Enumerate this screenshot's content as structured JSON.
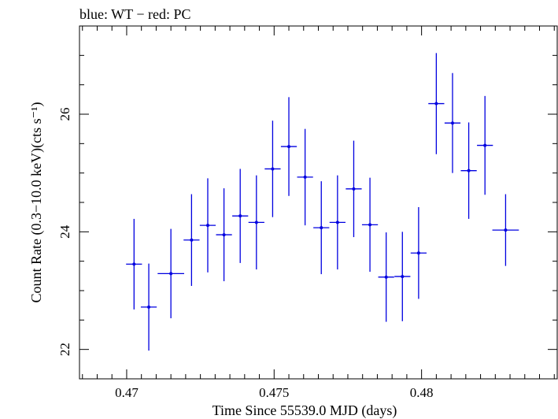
{
  "chart_data": {
    "type": "scatter",
    "title": "blue: WT − red: PC",
    "xlabel": "Time Since 55539.0 MJD (days)",
    "ylabel": "Count Rate (0.3−10.0 keV)(cts s⁻¹)",
    "xlim": [
      0.4684,
      0.4846
    ],
    "ylim": [
      21.5,
      27.5
    ],
    "x_ticks": [
      0.47,
      0.475,
      0.48
    ],
    "x_tick_labels": [
      "0.47",
      "0.475",
      "0.48"
    ],
    "y_ticks": [
      22,
      24,
      26
    ],
    "y_tick_labels": [
      "22",
      "24",
      "26"
    ],
    "grid": false,
    "color": "#0000e0",
    "series": [
      {
        "points": [
          {
            "x": 0.47025,
            "xerr": 0.00027,
            "y": 23.45,
            "yerr": 0.77
          },
          {
            "x": 0.47075,
            "xerr": 0.00027,
            "y": 22.72,
            "yerr": 0.74
          },
          {
            "x": 0.4715,
            "xerr": 0.00045,
            "y": 23.29,
            "yerr": 0.76
          },
          {
            "x": 0.4722,
            "xerr": 0.00027,
            "y": 23.86,
            "yerr": 0.78
          },
          {
            "x": 0.47275,
            "xerr": 0.00027,
            "y": 24.11,
            "yerr": 0.8
          },
          {
            "x": 0.4733,
            "xerr": 0.00027,
            "y": 23.95,
            "yerr": 0.79
          },
          {
            "x": 0.47385,
            "xerr": 0.00027,
            "y": 24.27,
            "yerr": 0.8
          },
          {
            "x": 0.4744,
            "xerr": 0.00027,
            "y": 24.16,
            "yerr": 0.8
          },
          {
            "x": 0.47495,
            "xerr": 0.00027,
            "y": 25.07,
            "yerr": 0.82
          },
          {
            "x": 0.4755,
            "xerr": 0.00027,
            "y": 25.45,
            "yerr": 0.84
          },
          {
            "x": 0.47605,
            "xerr": 0.00027,
            "y": 24.93,
            "yerr": 0.82
          },
          {
            "x": 0.4766,
            "xerr": 0.00027,
            "y": 24.07,
            "yerr": 0.79
          },
          {
            "x": 0.47715,
            "xerr": 0.00027,
            "y": 24.16,
            "yerr": 0.8
          },
          {
            "x": 0.4777,
            "xerr": 0.00027,
            "y": 24.73,
            "yerr": 0.82
          },
          {
            "x": 0.47825,
            "xerr": 0.00027,
            "y": 24.12,
            "yerr": 0.8
          },
          {
            "x": 0.4788,
            "xerr": 0.00027,
            "y": 23.23,
            "yerr": 0.76
          },
          {
            "x": 0.47935,
            "xerr": 0.00027,
            "y": 23.24,
            "yerr": 0.76
          },
          {
            "x": 0.4799,
            "xerr": 0.00027,
            "y": 23.64,
            "yerr": 0.78
          },
          {
            "x": 0.4805,
            "xerr": 0.00027,
            "y": 26.18,
            "yerr": 0.86
          },
          {
            "x": 0.48105,
            "xerr": 0.00027,
            "y": 25.85,
            "yerr": 0.85
          },
          {
            "x": 0.4816,
            "xerr": 0.00027,
            "y": 25.04,
            "yerr": 0.82
          },
          {
            "x": 0.48215,
            "xerr": 0.00027,
            "y": 25.47,
            "yerr": 0.84
          },
          {
            "x": 0.48285,
            "xerr": 0.00045,
            "y": 24.03,
            "yerr": 0.61
          }
        ]
      }
    ]
  }
}
